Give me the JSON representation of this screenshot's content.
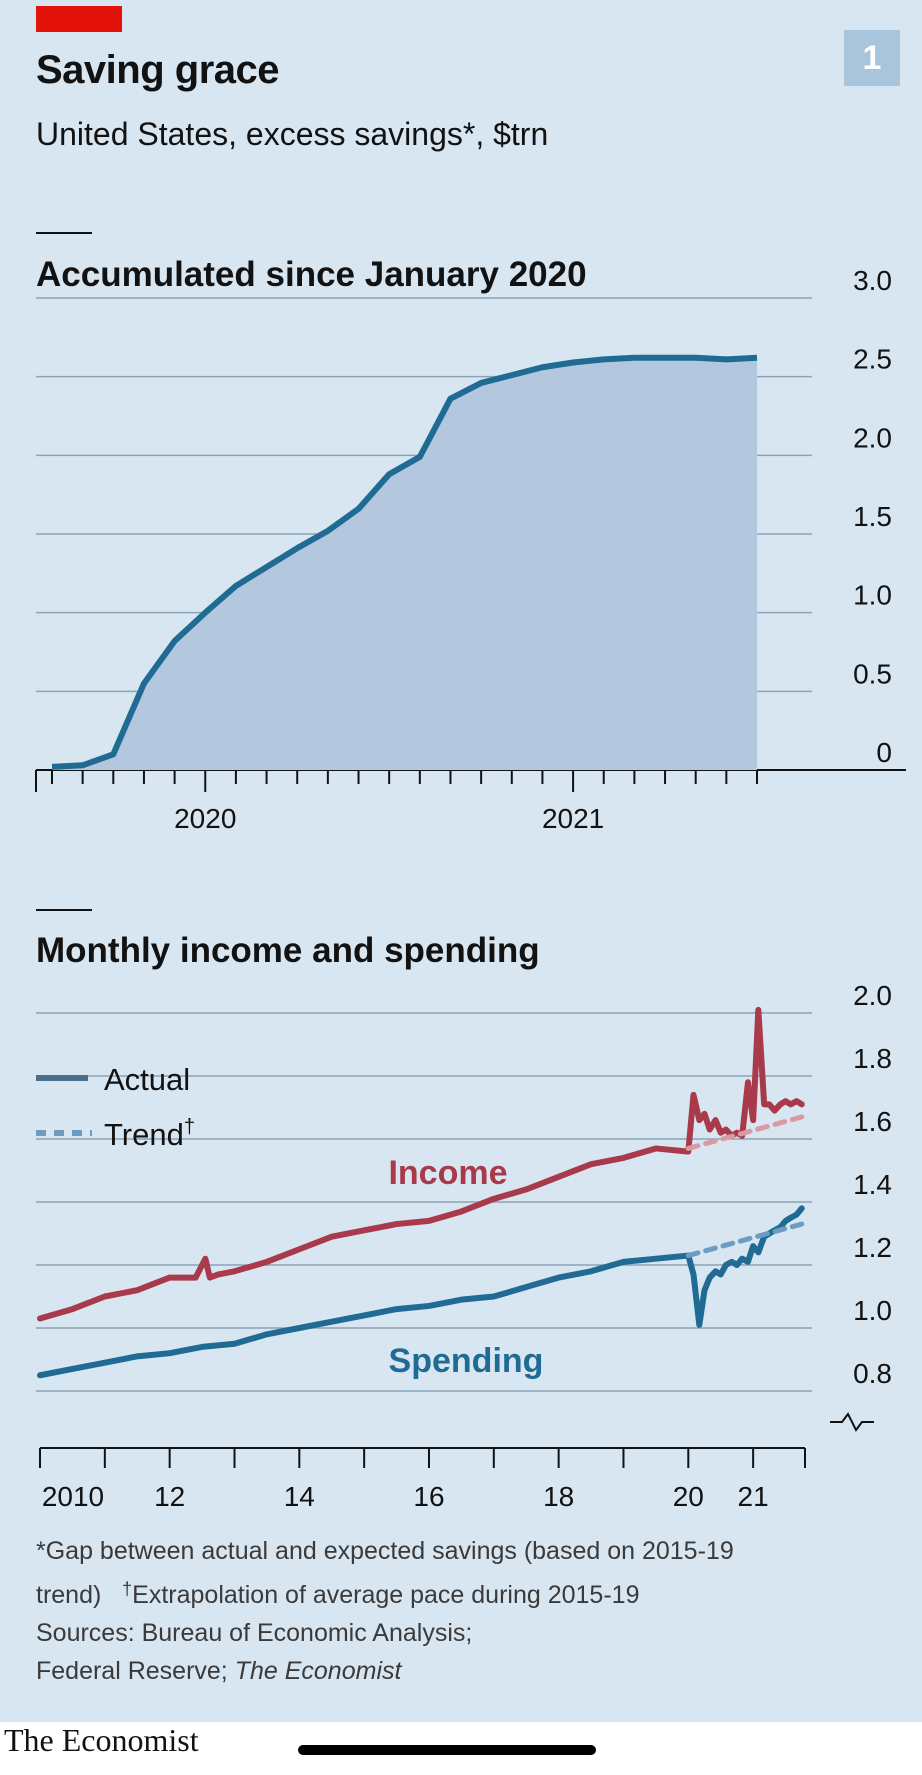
{
  "header": {
    "title": "Saving grace",
    "subtitle": "United States, excess savings*, $trn",
    "badge": "1"
  },
  "footnote": {
    "line1": "*Gap between actual and expected savings (based on 2015-19",
    "line2_a": "trend)",
    "line2_dagger": "†",
    "line2_b": "Extrapolation of average pace during 2015-19",
    "line3": "Sources: Bureau of Economic Analysis;",
    "line4_a": "Federal Reserve; ",
    "line4_b": "The Economist"
  },
  "brand": "The Economist",
  "colors": {
    "background": "#d8e6f1",
    "accumulated_line": "#1f6b94",
    "accumulated_fill": "#b3c8df",
    "income": "#a83a4b",
    "income_trend": "#d99aa2",
    "spending": "#1f6b94",
    "spending_trend": "#6c9cc1",
    "brand_red": "#e3120b"
  },
  "chart_data": [
    {
      "type": "area",
      "title": "Accumulated since January 2020",
      "ylim": [
        0,
        3.0
      ],
      "yticks": [
        "3.0",
        "2.5",
        "2.0",
        "1.5",
        "1.0",
        "0.5",
        "0"
      ],
      "xlim": [
        "2019-08",
        "2021-07"
      ],
      "xtick_labels": [
        {
          "label": "2020",
          "x": "2020-01"
        },
        {
          "label": "2021",
          "x": "2021-01"
        }
      ],
      "grid": true,
      "series": [
        {
          "x": [
            "2019-08",
            "2019-09",
            "2019-10",
            "2019-11",
            "2019-12",
            "2020-01",
            "2020-02",
            "2020-03",
            "2020-04",
            "2020-05",
            "2020-06",
            "2020-07",
            "2020-08",
            "2020-09",
            "2020-10",
            "2020-11",
            "2020-12",
            "2021-01",
            "2021-02",
            "2021-03",
            "2021-04",
            "2021-05",
            "2021-06",
            "2021-07"
          ],
          "values": [
            0.02,
            0.03,
            0.1,
            0.55,
            0.82,
            1.0,
            1.17,
            1.29,
            1.41,
            1.52,
            1.66,
            1.88,
            1.99,
            2.36,
            2.46,
            2.51,
            2.56,
            2.59,
            2.61,
            2.62,
            2.62,
            2.62,
            2.61,
            2.62
          ]
        }
      ]
    },
    {
      "type": "line",
      "title": "Monthly income and spending",
      "ylim": [
        0.7,
        2.0
      ],
      "yticks": [
        "2.0",
        "1.8",
        "1.6",
        "1.4",
        "1.2",
        "1.0",
        "0.8"
      ],
      "xlim": [
        2010,
        2021.8
      ],
      "xtick_labels": [
        {
          "label": "2010",
          "x": 2010
        },
        {
          "label": "12",
          "x": 2012
        },
        {
          "label": "14",
          "x": 2014
        },
        {
          "label": "16",
          "x": 2016
        },
        {
          "label": "18",
          "x": 2018
        },
        {
          "label": "20",
          "x": 2020
        },
        {
          "label": "21",
          "x": 2021
        }
      ],
      "legend": {
        "position": "top-left",
        "actual_label": "Actual",
        "trend_label": "Trend",
        "trend_dagger": "†"
      },
      "series": [
        {
          "name": "Income",
          "style": "actual",
          "x": [
            2010,
            2010.5,
            2011,
            2011.5,
            2012,
            2012.4,
            2012.55,
            2012.62,
            2012.75,
            2013,
            2013.5,
            2014,
            2014.5,
            2015,
            2015.5,
            2016,
            2016.5,
            2017,
            2017.5,
            2018,
            2018.5,
            2019,
            2019.5,
            2020,
            2020.08,
            2020.17,
            2020.25,
            2020.33,
            2020.42,
            2020.5,
            2020.58,
            2020.67,
            2020.75,
            2020.83,
            2020.92,
            2021,
            2021.08,
            2021.17,
            2021.25,
            2021.33,
            2021.42,
            2021.5,
            2021.58,
            2021.67,
            2021.75
          ],
          "values": [
            1.03,
            1.06,
            1.1,
            1.12,
            1.16,
            1.16,
            1.22,
            1.16,
            1.17,
            1.18,
            1.21,
            1.25,
            1.29,
            1.31,
            1.33,
            1.34,
            1.37,
            1.41,
            1.44,
            1.48,
            1.52,
            1.54,
            1.57,
            1.56,
            1.74,
            1.66,
            1.68,
            1.63,
            1.66,
            1.62,
            1.63,
            1.61,
            1.62,
            1.61,
            1.78,
            1.66,
            2.01,
            1.71,
            1.71,
            1.69,
            1.71,
            1.72,
            1.71,
            1.72,
            1.71
          ]
        },
        {
          "name": "Income",
          "style": "trend",
          "x": [
            2020,
            2021.75
          ],
          "values": [
            1.57,
            1.67
          ]
        },
        {
          "name": "Spending",
          "style": "actual",
          "x": [
            2010,
            2010.5,
            2011,
            2011.5,
            2012,
            2012.5,
            2013,
            2013.5,
            2014,
            2014.5,
            2015,
            2015.5,
            2016,
            2016.5,
            2017,
            2017.5,
            2018,
            2018.5,
            2019,
            2019.5,
            2020,
            2020.08,
            2020.17,
            2020.25,
            2020.33,
            2020.42,
            2020.5,
            2020.58,
            2020.67,
            2020.75,
            2020.83,
            2020.92,
            2021,
            2021.08,
            2021.17,
            2021.25,
            2021.33,
            2021.42,
            2021.5,
            2021.58,
            2021.67,
            2021.75
          ],
          "values": [
            0.85,
            0.87,
            0.89,
            0.91,
            0.92,
            0.94,
            0.95,
            0.98,
            1.0,
            1.02,
            1.04,
            1.06,
            1.07,
            1.09,
            1.1,
            1.13,
            1.16,
            1.18,
            1.21,
            1.22,
            1.23,
            1.17,
            1.01,
            1.12,
            1.16,
            1.18,
            1.17,
            1.2,
            1.21,
            1.2,
            1.22,
            1.21,
            1.26,
            1.24,
            1.29,
            1.3,
            1.31,
            1.32,
            1.34,
            1.35,
            1.36,
            1.38
          ]
        },
        {
          "name": "Spending",
          "style": "trend",
          "x": [
            2020,
            2021.75
          ],
          "values": [
            1.23,
            1.33
          ]
        }
      ],
      "annotations": [
        {
          "text": "Income",
          "color": "#a83a4b"
        },
        {
          "text": "Spending",
          "color": "#1f6b94"
        }
      ]
    }
  ]
}
